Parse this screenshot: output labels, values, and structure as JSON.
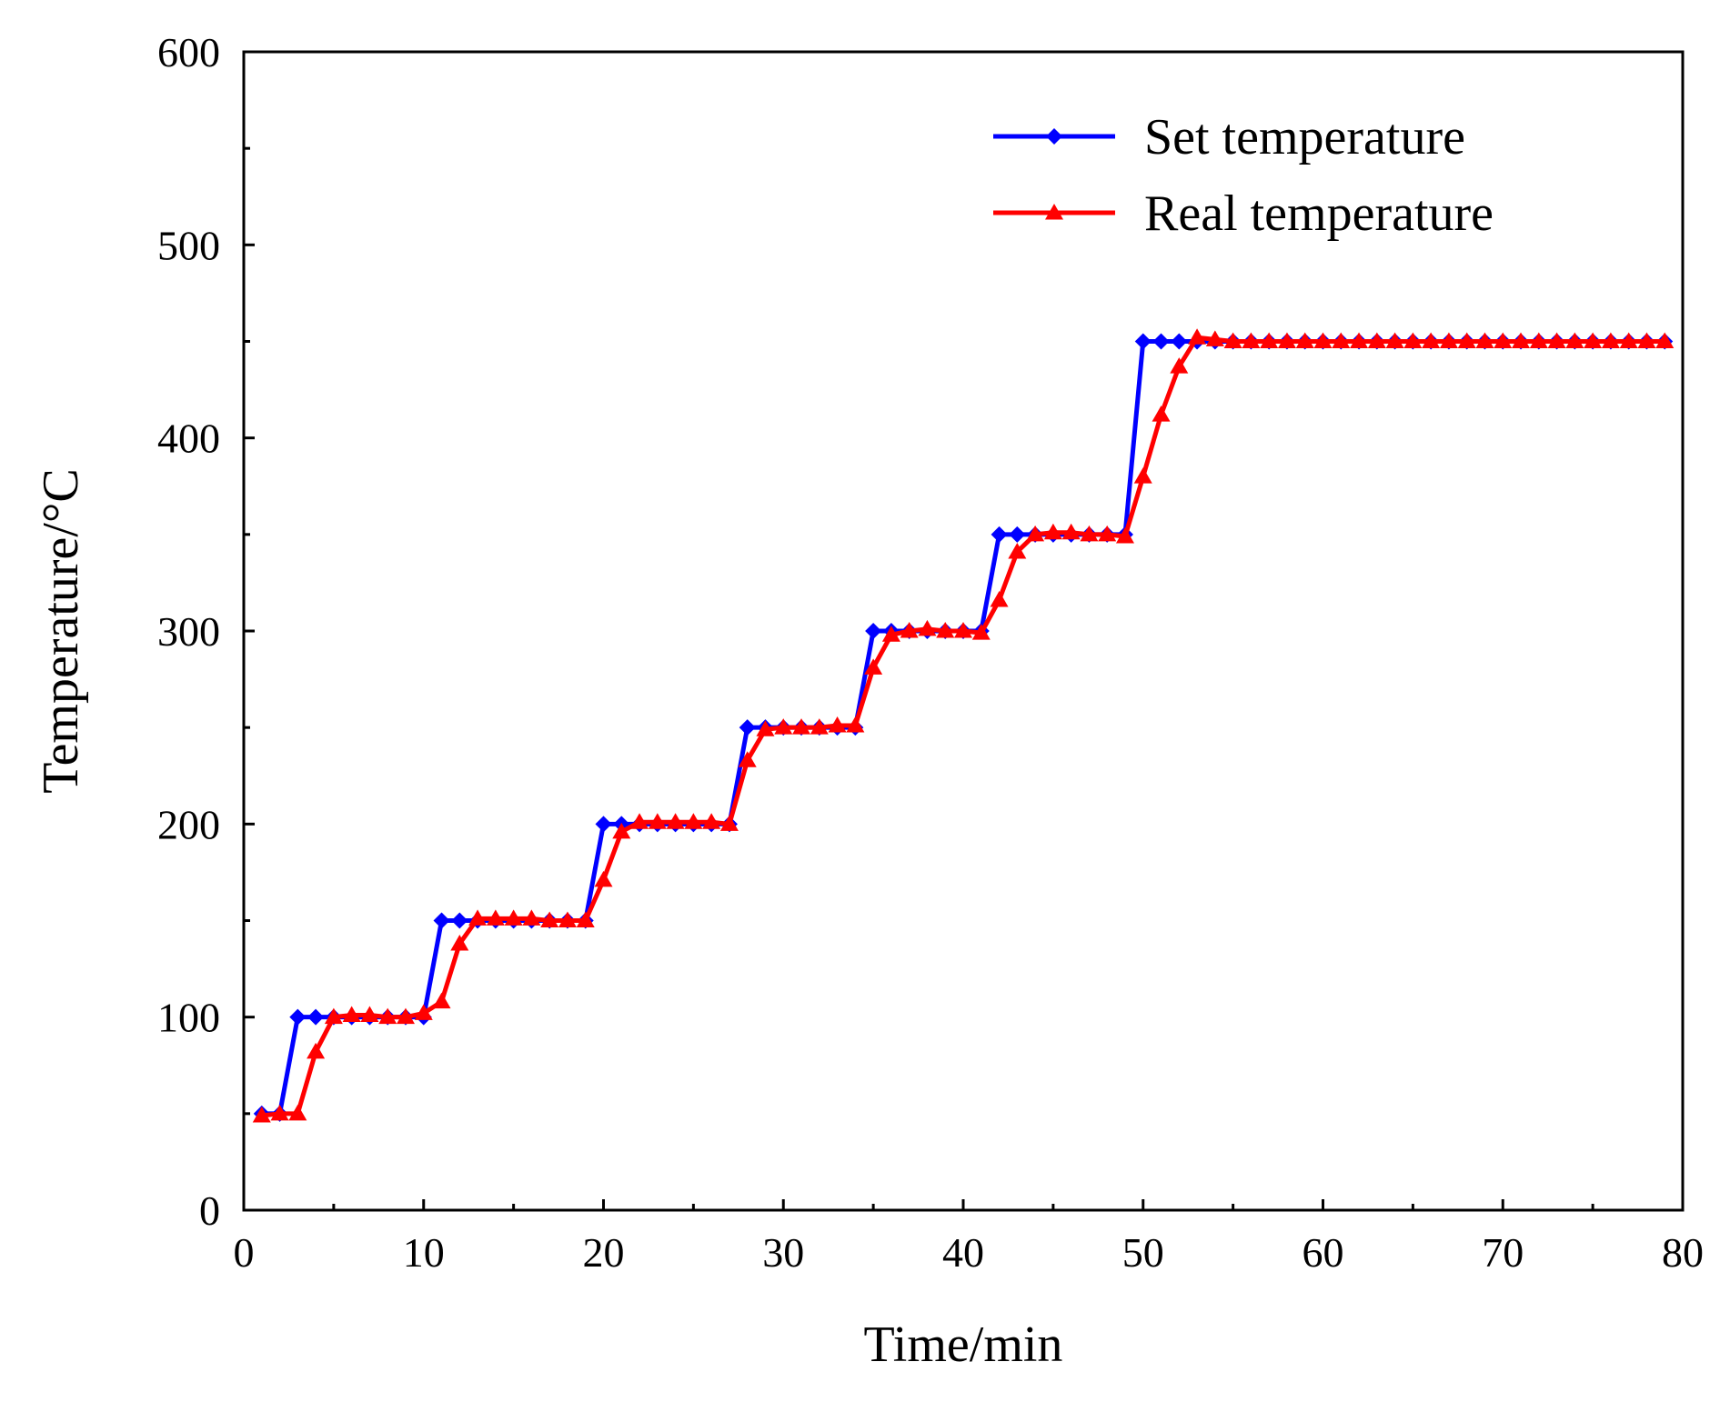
{
  "chart_data": {
    "type": "line",
    "title": "",
    "xlabel": "Time/min",
    "ylabel": "Temperature/°C",
    "xlim": [
      0,
      80
    ],
    "ylim": [
      0,
      600
    ],
    "xticks": [
      0,
      10,
      20,
      30,
      40,
      50,
      60,
      70,
      80
    ],
    "yticks": [
      0,
      100,
      200,
      300,
      400,
      500,
      600
    ],
    "grid": false,
    "legend_position": "top-right",
    "series": [
      {
        "name": "Set temperature",
        "color": "#0000ff",
        "marker": "diamond",
        "x": [
          1,
          2,
          3,
          4,
          5,
          6,
          7,
          8,
          9,
          10,
          11,
          12,
          13,
          14,
          15,
          16,
          17,
          18,
          19,
          20,
          21,
          22,
          23,
          24,
          25,
          26,
          27,
          28,
          29,
          30,
          31,
          32,
          33,
          34,
          35,
          36,
          37,
          38,
          39,
          40,
          41,
          42,
          43,
          44,
          45,
          46,
          47,
          48,
          49,
          50,
          51,
          52,
          53,
          54,
          55,
          56,
          57,
          58,
          59,
          60,
          61,
          62,
          63,
          64,
          65,
          66,
          67,
          68,
          69,
          70,
          71,
          72,
          73,
          74,
          75,
          76,
          77,
          78,
          79
        ],
        "y": [
          50,
          50,
          100,
          100,
          100,
          100,
          100,
          100,
          100,
          100,
          150,
          150,
          150,
          150,
          150,
          150,
          150,
          150,
          150,
          200,
          200,
          200,
          200,
          200,
          200,
          200,
          200,
          250,
          250,
          250,
          250,
          250,
          250,
          250,
          300,
          300,
          300,
          300,
          300,
          300,
          300,
          350,
          350,
          350,
          350,
          350,
          350,
          350,
          350,
          450,
          450,
          450,
          450,
          450,
          450,
          450,
          450,
          450,
          450,
          450,
          450,
          450,
          450,
          450,
          450,
          450,
          450,
          450,
          450,
          450,
          450,
          450,
          450,
          450,
          450,
          450,
          450,
          450,
          450
        ]
      },
      {
        "name": "Real temperature",
        "color": "#ff0000",
        "marker": "triangle",
        "x": [
          1,
          2,
          3,
          4,
          5,
          6,
          7,
          8,
          9,
          10,
          11,
          12,
          13,
          14,
          15,
          16,
          17,
          18,
          19,
          20,
          21,
          22,
          23,
          24,
          25,
          26,
          27,
          28,
          29,
          30,
          31,
          32,
          33,
          34,
          35,
          36,
          37,
          38,
          39,
          40,
          41,
          42,
          43,
          44,
          45,
          46,
          47,
          48,
          49,
          50,
          51,
          52,
          53,
          54,
          55,
          56,
          57,
          58,
          59,
          60,
          61,
          62,
          63,
          64,
          65,
          66,
          67,
          68,
          69,
          70,
          71,
          72,
          73,
          74,
          75,
          76,
          77,
          78,
          79
        ],
        "y": [
          49,
          50,
          50,
          82,
          100,
          101,
          101,
          100,
          100,
          102,
          108,
          138,
          151,
          151,
          151,
          151,
          150,
          150,
          150,
          171,
          196,
          201,
          201,
          201,
          201,
          201,
          200,
          233,
          249,
          250,
          250,
          250,
          251,
          251,
          281,
          298,
          300,
          301,
          300,
          300,
          299,
          316,
          341,
          350,
          351,
          351,
          350,
          350,
          349,
          380,
          412,
          437,
          452,
          451,
          450,
          450,
          450,
          450,
          450,
          450,
          450,
          450,
          450,
          450,
          450,
          450,
          450,
          450,
          450,
          450,
          450,
          450,
          450,
          450,
          450,
          450,
          450,
          450,
          450
        ]
      }
    ]
  }
}
